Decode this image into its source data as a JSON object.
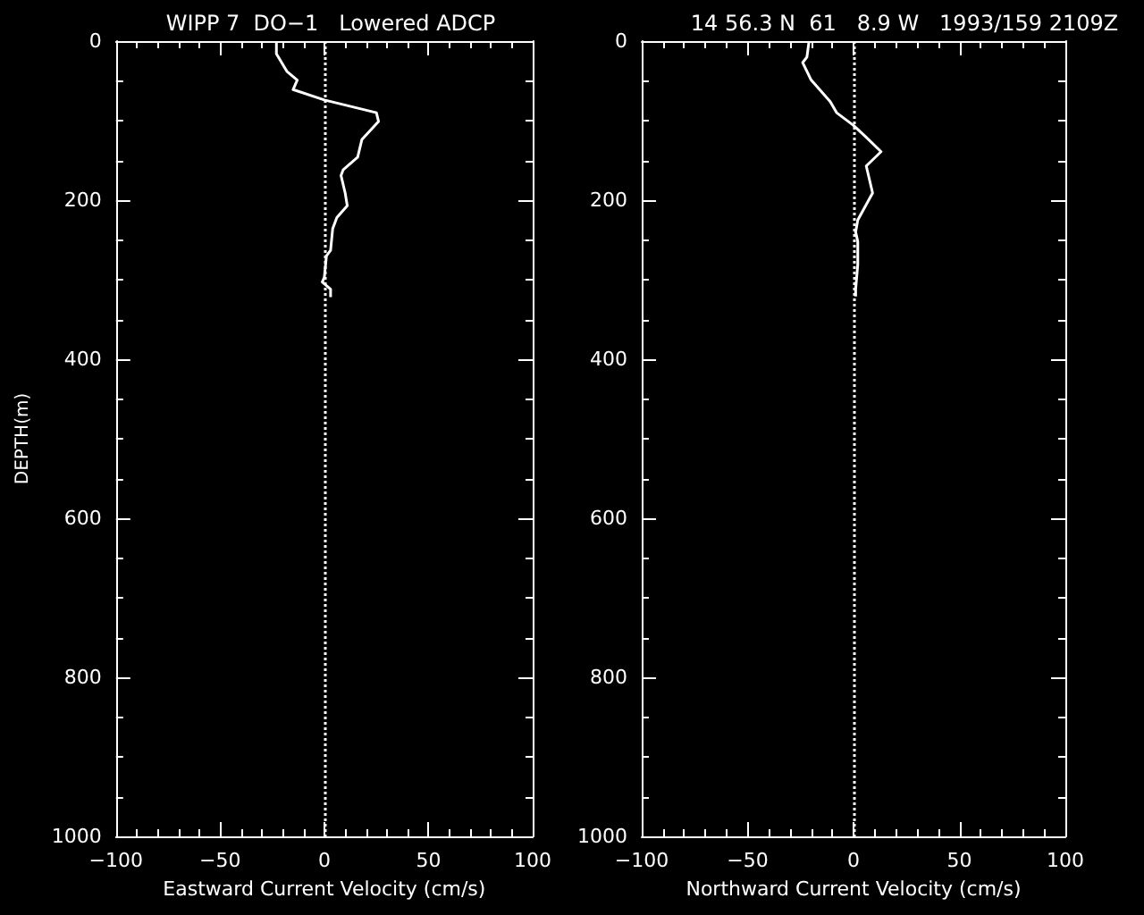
{
  "chart_data": [
    {
      "type": "line",
      "title": "WIPP 7  DO−1   Lowered ADCP",
      "xlabel": "Eastward Current Velocity (cm/s)",
      "ylabel": "DEPTH(m)",
      "xlim": [
        -100,
        100
      ],
      "xticks": [
        -100,
        -50,
        0,
        50,
        100
      ],
      "ylim": [
        1000,
        0
      ],
      "yticks": [
        0,
        200,
        400,
        600,
        800,
        1000
      ],
      "grid": false,
      "marker": "none",
      "line_style": "solid",
      "series": [
        {
          "color": "#ffffff",
          "x": [
            -23,
            -23,
            -18,
            -13,
            -15,
            0,
            25,
            26,
            18,
            16,
            9,
            8,
            10,
            11,
            6,
            4,
            3,
            1,
            0,
            -1,
            3,
            3
          ],
          "values": [
            0,
            16,
            38,
            49,
            61,
            74,
            90,
            101,
            124,
            146,
            162,
            169,
            191,
            207,
            222,
            236,
            263,
            270,
            297,
            303,
            312,
            322
          ]
        }
      ],
      "ref_lines": [
        {
          "axis": "x",
          "value": 0,
          "color": "#ffffff",
          "line_style": "dotted"
        }
      ]
    },
    {
      "type": "line",
      "title": "14 56.3 N  61   8.9 W   1993/159 2109Z",
      "xlabel": "Northward Current Velocity (cm/s)",
      "xlim": [
        -100,
        100
      ],
      "xticks": [
        -100,
        -50,
        0,
        50,
        100
      ],
      "ylim": [
        1000,
        0
      ],
      "yticks": [
        0,
        200,
        400,
        600,
        800,
        1000
      ],
      "grid": false,
      "marker": "none",
      "line_style": "solid",
      "series": [
        {
          "color": "#ffffff",
          "x": [
            -21,
            -22,
            -24,
            -20,
            -16,
            -11,
            -8,
            0,
            6,
            13,
            6,
            9,
            2,
            1,
            2,
            2,
            1,
            1
          ],
          "values": [
            0,
            20,
            27,
            49,
            61,
            76,
            90,
            106,
            121,
            139,
            157,
            191,
            225,
            240,
            252,
            281,
            312,
            321
          ]
        }
      ],
      "ref_lines": [
        {
          "axis": "x",
          "value": 0,
          "color": "#ffffff",
          "line_style": "dotted"
        }
      ]
    }
  ]
}
